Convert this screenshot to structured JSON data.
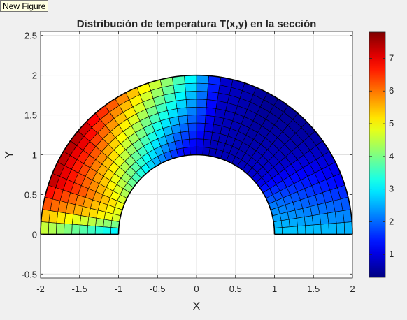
{
  "window": {
    "tooltip": "New Figure"
  },
  "chart_data": {
    "type": "heatmap",
    "title": "Distribución de temperatura T(x,y) en la sección",
    "xlabel": "X",
    "ylabel": "Y",
    "xlim": [
      -2,
      2
    ],
    "ylim": [
      -0.55,
      2.55
    ],
    "xticks": [
      "-2",
      "-1.5",
      "-1",
      "-0.5",
      "0",
      "0.5",
      "1",
      "1.5",
      "2"
    ],
    "yticks": [
      "-0.5",
      "0",
      "0.5",
      "1",
      "1.5",
      "2",
      "2.5"
    ],
    "colorbar": {
      "colormap": "jet",
      "range": [
        0.3,
        7.8
      ],
      "ticks": [
        "1",
        "2",
        "3",
        "4",
        "5",
        "6",
        "7"
      ]
    },
    "grid": true,
    "mesh": {
      "shape": "half-annulus",
      "inner_radius": 1,
      "outer_radius": 2,
      "radial_divisions": 10,
      "angular_divisions": 40
    },
    "temperature_along_theta": {
      "theta_deg": [
        0,
        20,
        40,
        60,
        80,
        90,
        100,
        120,
        140,
        160,
        170,
        180
      ],
      "inner": [
        2.8,
        2.2,
        1.0,
        0.7,
        0.7,
        0.9,
        1.1,
        2.4,
        3.6,
        4.8,
        4.6,
        2.5
      ],
      "outer": [
        2.7,
        1.2,
        0.5,
        0.4,
        0.9,
        2.9,
        4.2,
        6.1,
        7.6,
        7.4,
        6.2,
        4.2
      ]
    }
  }
}
